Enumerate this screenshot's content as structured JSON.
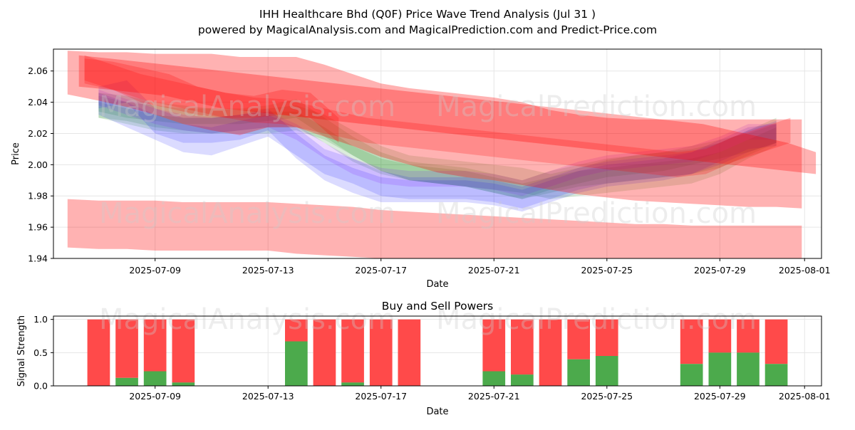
{
  "title_line1": "IHH Healthcare Bhd (Q0F) Price Wave Trend Analysis (Jul 31 )",
  "title_line2": "powered by MagicalAnalysis.com and MagicalPrediction.com and Predict-Price.com",
  "watermarks": [
    "MagicalAnalysis.com",
    "MagicalPrediction.com"
  ],
  "colors": {
    "red": "#ff0000",
    "green": "#008000",
    "blue": "#0000ff",
    "purple": "#8000ff",
    "buy": "#4caa4c",
    "sell": "#ff4a4a",
    "grid": "#e6e6e6"
  },
  "chart_data": [
    {
      "type": "area",
      "title": "",
      "xlabel": "Date",
      "ylabel": "Price",
      "x_start": "2025-07-06",
      "xlim": [
        -0.6,
        26.6
      ],
      "ylim": [
        1.94,
        2.074
      ],
      "xticks": [
        {
          "day": 3,
          "label": "2025-07-09"
        },
        {
          "day": 7,
          "label": "2025-07-13"
        },
        {
          "day": 11,
          "label": "2025-07-17"
        },
        {
          "day": 15,
          "label": "2025-07-21"
        },
        {
          "day": 19,
          "label": "2025-07-25"
        },
        {
          "day": 23,
          "label": "2025-07-29"
        },
        {
          "day": 26,
          "label": "2025-08-01"
        }
      ],
      "yticks": [
        1.94,
        1.96,
        1.98,
        2.0,
        2.02,
        2.04,
        2.06
      ],
      "grid": true,
      "series": [
        {
          "name": "red-band-1",
          "color": "red",
          "opacity": 0.3,
          "x": [
            -0.1,
            1,
            2,
            3,
            4,
            5,
            6,
            7,
            8,
            9,
            10,
            11,
            12,
            13,
            14,
            15,
            16,
            17,
            18,
            19,
            20,
            21,
            22,
            23,
            24,
            25,
            25.9
          ],
          "upper": [
            2.073,
            2.072,
            2.072,
            2.071,
            2.071,
            2.071,
            2.069,
            2.069,
            2.069,
            2.064,
            2.058,
            2.052,
            2.049,
            2.047,
            2.045,
            2.043,
            2.04,
            2.035,
            2.032,
            2.03,
            2.029,
            2.029,
            2.029,
            2.029,
            2.029,
            2.029,
            2.029
          ],
          "lower": [
            2.045,
            2.041,
            2.037,
            2.032,
            2.026,
            2.022,
            2.019,
            2.024,
            2.024,
            2.018,
            2.012,
            2.005,
            2.0,
            1.995,
            1.992,
            1.99,
            1.987,
            1.984,
            1.981,
            1.979,
            1.977,
            1.976,
            1.975,
            1.974,
            1.973,
            1.973,
            1.972
          ]
        },
        {
          "name": "red-band-2",
          "color": "red",
          "opacity": 0.3,
          "x": [
            -0.1,
            1,
            2,
            3,
            4,
            5,
            6,
            7,
            8,
            9,
            10,
            11,
            12,
            13,
            14,
            15,
            16,
            17,
            18,
            19,
            20,
            21,
            22,
            23,
            24,
            25,
            25.9
          ],
          "upper": [
            1.978,
            1.977,
            1.977,
            1.977,
            1.976,
            1.976,
            1.976,
            1.976,
            1.975,
            1.974,
            1.973,
            1.971,
            1.97,
            1.969,
            1.968,
            1.967,
            1.966,
            1.965,
            1.964,
            1.963,
            1.962,
            1.962,
            1.961,
            1.961,
            1.961,
            1.961,
            1.961
          ],
          "lower": [
            1.947,
            1.946,
            1.946,
            1.945,
            1.945,
            1.945,
            1.945,
            1.945,
            1.943,
            1.942,
            1.941,
            1.94,
            1.94,
            1.94,
            1.94,
            1.94,
            1.94,
            1.94,
            1.94,
            1.94,
            1.94,
            1.94,
            1.94,
            1.94,
            1.94,
            1.94,
            1.94
          ]
        },
        {
          "name": "red-band-3",
          "color": "red",
          "opacity": 0.3,
          "x": [
            0.3,
            1.4,
            2.4,
            3.4,
            4.4,
            5.4,
            6.4,
            7.4,
            8.4,
            9.4,
            10.4,
            11.4,
            12.4,
            13.4,
            14.4,
            15.4,
            16.4,
            17.4,
            18.4,
            19.4,
            20.4,
            21.4,
            22.4,
            23.4,
            24.4,
            25.4,
            26.4
          ],
          "upper": [
            2.07,
            2.068,
            2.066,
            2.064,
            2.062,
            2.06,
            2.058,
            2.056,
            2.054,
            2.052,
            2.05,
            2.048,
            2.046,
            2.044,
            2.042,
            2.04,
            2.038,
            2.036,
            2.034,
            2.032,
            2.03,
            2.028,
            2.026,
            2.022,
            2.018,
            2.014,
            2.008
          ],
          "lower": [
            2.05,
            2.048,
            2.046,
            2.044,
            2.04,
            2.036,
            2.034,
            2.032,
            2.03,
            2.028,
            2.026,
            2.024,
            2.022,
            2.02,
            2.018,
            2.016,
            2.014,
            2.012,
            2.01,
            2.008,
            2.006,
            2.004,
            2.002,
            2.0,
            1.998,
            1.996,
            1.994
          ]
        },
        {
          "name": "red-band-4",
          "color": "red",
          "opacity": 0.22,
          "x": [
            0.5,
            1.5,
            2.5,
            3.5,
            4.5,
            5.5,
            6.5,
            7.5,
            8.5,
            9.5
          ],
          "upper": [
            2.068,
            2.066,
            2.062,
            2.058,
            2.05,
            2.046,
            2.044,
            2.048,
            2.046,
            2.03
          ],
          "lower": [
            2.052,
            2.048,
            2.04,
            2.036,
            2.032,
            2.03,
            2.03,
            2.032,
            2.03,
            2.014
          ]
        },
        {
          "name": "red-band-5",
          "color": "red",
          "opacity": 0.22,
          "x": [
            0.5,
            1.5,
            2.5,
            3.5,
            4.5,
            5.5,
            6.5,
            7.5,
            8.5,
            9.5,
            10.5,
            11.5,
            12.5,
            13.5,
            14.5,
            15.5,
            16.5,
            17.5,
            18.5,
            19.5,
            20.5,
            21.5,
            22.5,
            23.5,
            24.5,
            25.5
          ],
          "upper": [
            2.07,
            2.064,
            2.058,
            2.054,
            2.05,
            2.046,
            2.043,
            2.042,
            2.038,
            2.034,
            2.03,
            2.028,
            2.026,
            2.024,
            2.022,
            2.02,
            2.018,
            2.016,
            2.014,
            2.012,
            2.01,
            2.008,
            2.01,
            2.018,
            2.024,
            2.03
          ],
          "lower": [
            2.054,
            2.048,
            2.042,
            2.038,
            2.034,
            2.03,
            2.027,
            2.026,
            2.022,
            2.018,
            2.014,
            2.012,
            2.01,
            2.008,
            2.006,
            2.004,
            2.002,
            2.0,
            1.998,
            1.996,
            1.994,
            1.992,
            1.994,
            2.002,
            2.008,
            2.014
          ]
        },
        {
          "name": "green-band-1",
          "color": "green",
          "opacity": 0.14,
          "x": [
            1,
            2,
            3,
            4,
            5,
            6,
            7,
            8,
            9,
            10,
            11,
            12,
            13,
            14,
            15,
            16,
            17,
            18,
            19,
            20,
            21,
            22,
            23,
            24,
            25
          ],
          "upper": [
            2.046,
            2.044,
            2.04,
            2.038,
            2.036,
            2.035,
            2.036,
            2.038,
            2.032,
            2.022,
            2.012,
            2.006,
            2.004,
            2.002,
            2.0,
            1.998,
            1.994,
            1.998,
            2.003,
            2.006,
            2.008,
            2.01,
            2.014,
            2.022,
            2.03
          ],
          "lower": [
            2.03,
            2.028,
            2.024,
            2.022,
            2.02,
            2.02,
            2.02,
            2.022,
            2.016,
            2.006,
            1.996,
            1.99,
            1.988,
            1.986,
            1.984,
            1.982,
            1.978,
            1.98,
            1.982,
            1.984,
            1.986,
            1.988,
            1.994,
            2.004,
            2.012
          ]
        },
        {
          "name": "green-band-2",
          "color": "green",
          "opacity": 0.14,
          "x": [
            1,
            2,
            3,
            4,
            5,
            6,
            7,
            8,
            9,
            10,
            11,
            12,
            13,
            14,
            15,
            16,
            17,
            18,
            19,
            20,
            21,
            22,
            23,
            24,
            25
          ],
          "upper": [
            2.044,
            2.04,
            2.038,
            2.036,
            2.036,
            2.036,
            2.038,
            2.042,
            2.03,
            2.018,
            2.008,
            2.002,
            2.0,
            1.998,
            1.994,
            1.99,
            1.996,
            2.0,
            2.004,
            2.006,
            2.008,
            2.012,
            2.016,
            2.02,
            2.026
          ],
          "lower": [
            2.034,
            2.03,
            2.028,
            2.026,
            2.026,
            2.026,
            2.028,
            2.03,
            2.018,
            2.006,
            1.996,
            1.99,
            1.988,
            1.986,
            1.982,
            1.978,
            1.984,
            1.988,
            1.992,
            1.994,
            1.996,
            2.0,
            2.004,
            2.008,
            2.014
          ]
        },
        {
          "name": "green-band-3",
          "color": "green",
          "opacity": 0.14,
          "x": [
            1,
            2,
            3,
            4,
            5,
            6,
            7,
            8,
            9,
            10,
            11,
            12,
            13,
            14,
            15,
            16,
            17,
            18,
            19,
            20,
            21,
            22,
            23,
            24,
            25
          ],
          "upper": [
            2.04,
            2.036,
            2.032,
            2.03,
            2.03,
            2.032,
            2.034,
            2.034,
            2.024,
            2.012,
            2.004,
            2.0,
            1.998,
            1.996,
            1.992,
            1.988,
            1.992,
            1.996,
            1.998,
            2.0,
            2.002,
            2.004,
            2.008,
            2.016,
            2.024
          ],
          "lower": [
            2.03,
            2.026,
            2.022,
            2.02,
            2.02,
            2.022,
            2.024,
            2.024,
            2.014,
            2.002,
            1.994,
            1.99,
            1.988,
            1.986,
            1.982,
            1.978,
            1.982,
            1.986,
            1.988,
            1.99,
            1.992,
            1.994,
            1.998,
            2.006,
            2.014
          ]
        },
        {
          "name": "blue-band-1",
          "color": "blue",
          "opacity": 0.14,
          "x": [
            1,
            2,
            3,
            4,
            5,
            6,
            7,
            8,
            9,
            10,
            11,
            12,
            13,
            14,
            15,
            16,
            17,
            18,
            19,
            20,
            21,
            22,
            23,
            24,
            25
          ],
          "upper": [
            2.046,
            2.04,
            2.032,
            2.026,
            2.024,
            2.028,
            2.032,
            2.024,
            2.01,
            2.004,
            1.996,
            1.992,
            1.992,
            1.992,
            1.99,
            1.986,
            1.992,
            1.998,
            2.002,
            2.004,
            2.006,
            2.008,
            2.014,
            2.022,
            2.028
          ],
          "lower": [
            2.032,
            2.024,
            2.016,
            2.008,
            2.006,
            2.012,
            2.018,
            2.006,
            1.994,
            1.988,
            1.98,
            1.978,
            1.978,
            1.978,
            1.976,
            1.972,
            1.978,
            1.984,
            1.988,
            1.99,
            1.992,
            1.994,
            2.0,
            2.008,
            2.014
          ]
        },
        {
          "name": "blue-band-2",
          "color": "blue",
          "opacity": 0.14,
          "x": [
            1,
            2,
            3,
            4,
            5,
            6,
            7,
            8,
            9,
            10,
            11,
            12,
            13,
            14,
            15,
            16,
            17,
            18,
            19,
            20,
            21,
            22,
            23,
            24,
            25
          ],
          "upper": [
            2.05,
            2.054,
            2.036,
            2.03,
            2.03,
            2.032,
            2.036,
            2.02,
            2.006,
            1.998,
            1.992,
            1.99,
            1.99,
            1.99,
            1.988,
            1.984,
            1.99,
            1.996,
            2.0,
            2.002,
            2.004,
            2.008,
            2.016,
            2.024,
            2.026
          ],
          "lower": [
            2.036,
            2.04,
            2.02,
            2.014,
            2.014,
            2.016,
            2.022,
            2.004,
            1.99,
            1.982,
            1.976,
            1.976,
            1.976,
            1.976,
            1.974,
            1.97,
            1.976,
            1.982,
            1.986,
            1.988,
            1.99,
            1.994,
            2.002,
            2.01,
            2.012
          ]
        },
        {
          "name": "purple-band-1",
          "color": "purple",
          "opacity": 0.14,
          "x": [
            1,
            2,
            3,
            4,
            5,
            6,
            7,
            8,
            9,
            10,
            11,
            12,
            13,
            14,
            15,
            16,
            17,
            18,
            19,
            20,
            21,
            22,
            23,
            24,
            25
          ],
          "upper": [
            2.048,
            2.042,
            2.036,
            2.032,
            2.03,
            2.032,
            2.034,
            2.026,
            2.014,
            2.004,
            1.998,
            1.996,
            1.996,
            1.996,
            1.994,
            1.99,
            1.996,
            2.002,
            2.006,
            2.008,
            2.01,
            2.012,
            2.018,
            2.026,
            2.026
          ],
          "lower": [
            2.038,
            2.032,
            2.026,
            2.022,
            2.02,
            2.022,
            2.024,
            2.016,
            2.004,
            1.994,
            1.988,
            1.986,
            1.986,
            1.986,
            1.984,
            1.98,
            1.986,
            1.992,
            1.996,
            1.998,
            2.0,
            2.002,
            2.008,
            2.016,
            2.016
          ]
        }
      ]
    },
    {
      "type": "bar",
      "title": "Buy and Sell Powers",
      "xlabel": "Date",
      "ylabel": "Signal Strength",
      "ylim": [
        0,
        1.05
      ],
      "xlim": [
        -0.6,
        26.6
      ],
      "yticks": [
        0.0,
        0.5,
        1.0
      ],
      "xticks": [
        {
          "day": 3,
          "label": "2025-07-09"
        },
        {
          "day": 7,
          "label": "2025-07-13"
        },
        {
          "day": 11,
          "label": "2025-07-17"
        },
        {
          "day": 15,
          "label": "2025-07-21"
        },
        {
          "day": 19,
          "label": "2025-07-25"
        },
        {
          "day": 23,
          "label": "2025-07-29"
        },
        {
          "day": 26,
          "label": "2025-08-01"
        }
      ],
      "grid": true,
      "bars": [
        {
          "day": 1,
          "buy": 0.0
        },
        {
          "day": 2,
          "buy": 0.12
        },
        {
          "day": 3,
          "buy": 0.22
        },
        {
          "day": 4,
          "buy": 0.05
        },
        {
          "day": 8,
          "buy": 0.67
        },
        {
          "day": 9,
          "buy": 0.0
        },
        {
          "day": 10,
          "buy": 0.05
        },
        {
          "day": 11,
          "buy": 0.0
        },
        {
          "day": 12,
          "buy": 0.0
        },
        {
          "day": 15,
          "buy": 0.22
        },
        {
          "day": 16,
          "buy": 0.17
        },
        {
          "day": 17,
          "buy": 0.0
        },
        {
          "day": 18,
          "buy": 0.4
        },
        {
          "day": 19,
          "buy": 0.45
        },
        {
          "day": 22,
          "buy": 0.33
        },
        {
          "day": 23,
          "buy": 0.5
        },
        {
          "day": 24,
          "buy": 0.5
        },
        {
          "day": 25,
          "buy": 0.33
        }
      ]
    }
  ]
}
